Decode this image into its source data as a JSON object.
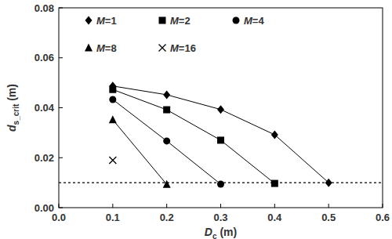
{
  "chart_data": {
    "type": "line",
    "x_label": "Dc (m)",
    "y_label": "ds_crit (m)",
    "x": [
      0.1,
      0.2,
      0.3,
      0.4,
      0.5
    ],
    "series": [
      {
        "name": "M=1",
        "color": "#000000",
        "marker": "diamond",
        "line_style": "solid",
        "values": [
          0.0487,
          0.0452,
          0.0393,
          0.0292,
          0.01
        ]
      },
      {
        "name": "M=2",
        "color": "#000000",
        "marker": "square",
        "line_style": "solid",
        "values": [
          0.0473,
          0.0392,
          0.027,
          0.0097,
          null
        ]
      },
      {
        "name": "M=4",
        "color": "#000000",
        "marker": "circle",
        "line_style": "solid",
        "values": [
          0.0433,
          0.0267,
          0.0094,
          null,
          null
        ]
      },
      {
        "name": "M=8",
        "color": "#000000",
        "marker": "triangle",
        "line_style": "solid",
        "values": [
          0.0352,
          0.0093,
          null,
          null,
          null
        ]
      },
      {
        "name": "M=16",
        "color": "#000000",
        "marker": "x",
        "line_style": "none",
        "values": [
          0.019,
          null,
          null,
          null,
          null
        ]
      }
    ],
    "hline": 0.01,
    "xlim": [
      0,
      0.6
    ],
    "xticks": [
      {
        "value": 0,
        "label": "0.0"
      },
      0.1,
      0.2,
      0.3,
      0.4,
      0.5,
      0.6
    ],
    "ylim": [
      0,
      0.08
    ],
    "yticks": [
      {
        "value": 0,
        "label": "0.00"
      },
      {
        "value": 0.02,
        "label": "0.02"
      },
      {
        "value": 0.04,
        "label": "0.04"
      },
      {
        "value": 0.06,
        "label": "0.06"
      },
      {
        "value": 0.08,
        "label": "0.08"
      }
    ],
    "legend": "upper left",
    "grid": false
  }
}
